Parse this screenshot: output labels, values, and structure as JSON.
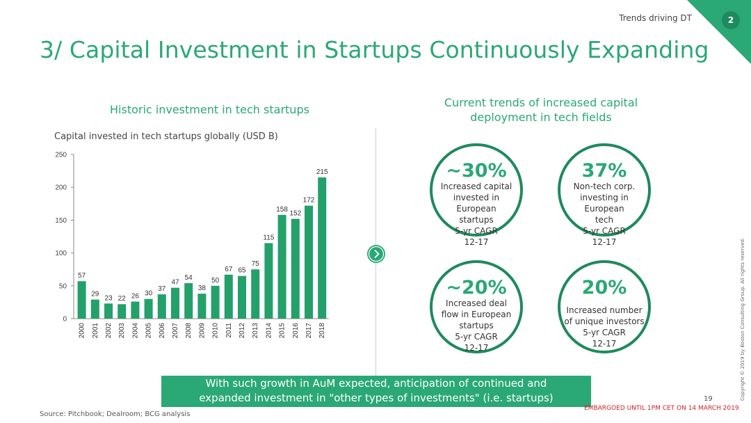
{
  "header": {
    "section_tag": "Trends driving DT",
    "page_badge": "2",
    "title": "3/ Capital Investment in Startups Continuously Expanding"
  },
  "left_panel": {
    "subtitle": "Historic investment in tech startups"
  },
  "right_panel": {
    "subtitle_line1": "Current trends of increased capital",
    "subtitle_line2": "deployment in tech fields",
    "stats": [
      {
        "value": "~30%",
        "desc": [
          "Increased capital",
          "invested in European",
          "startups",
          "5-yr CAGR",
          "12-17"
        ]
      },
      {
        "value": "37%",
        "desc": [
          "Non-tech corp.",
          "investing in European",
          "tech",
          "5-yr CAGR",
          "12-17"
        ]
      },
      {
        "value": "~20%",
        "desc": [
          "Increased deal",
          "flow in European",
          "startups",
          "5-yr CAGR",
          "12-17"
        ]
      },
      {
        "value": "20%",
        "desc": [
          "Increased number",
          "of unique investors",
          "5-yr CAGR",
          "12-17"
        ]
      }
    ]
  },
  "callout": {
    "line1": "With such growth in AuM expected, anticipation of continued and",
    "line2": "expanded investment in \"other types of investments\" (i.e. startups)"
  },
  "footer": {
    "source": "Source:  Pitchbook;  Dealroom;  BCG analysis",
    "page_number": "19",
    "embargo": "EMBARGOED UNTIL 1PM CET ON 14 MARCH 2019",
    "copyright": "Copyright © 2019 by Boston Consulting Group. All rights reserved."
  },
  "colors": {
    "accent": "#2aa876",
    "bar": "#24a06b",
    "circle_border": "#1e8a5c",
    "embargo": "#d62020"
  },
  "icons": {
    "arrow": "chevron-right-icon"
  },
  "chart_data": {
    "type": "bar",
    "title": "Capital invested in tech startups globally (USD B)",
    "categories": [
      "2000",
      "2001",
      "2002",
      "2003",
      "2004",
      "2005",
      "2006",
      "2007",
      "2008",
      "2009",
      "2010",
      "2011",
      "2012",
      "2013",
      "2014",
      "2015",
      "2016",
      "2017",
      "2018"
    ],
    "values": [
      57,
      29,
      23,
      22,
      26,
      30,
      37,
      47,
      54,
      38,
      50,
      67,
      65,
      75,
      115,
      158,
      152,
      172,
      215
    ],
    "ylim": [
      0,
      250
    ],
    "yticks": [
      0,
      50,
      100,
      150,
      200,
      250
    ],
    "grid": false,
    "legend": "none"
  }
}
